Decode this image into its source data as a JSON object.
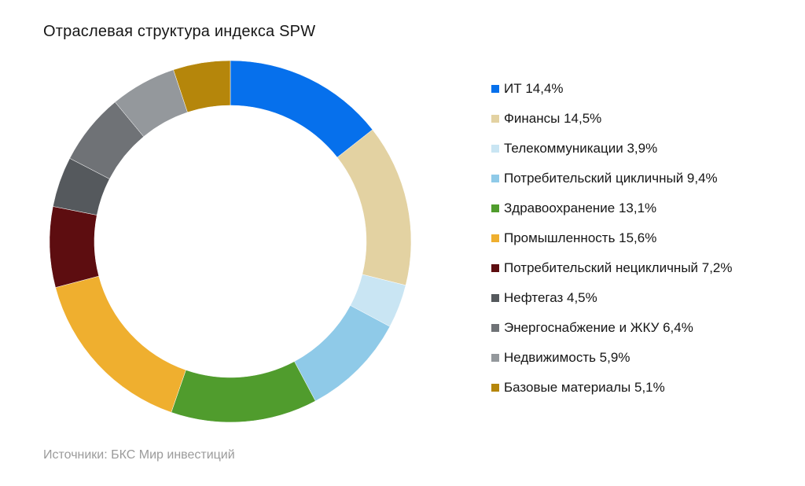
{
  "title": "Отраслевая структура индекса SPW",
  "source": "Источники: БКС Мир инвестиций",
  "chart_data": {
    "type": "pie",
    "subtype": "donut",
    "title": "Отраслевая структура индекса SPW",
    "legend_position": "right",
    "value_format": "percent-comma-decimal",
    "total": 100.0,
    "segments": [
      {
        "label": "ИТ",
        "value": 14.4,
        "display": "14,4%",
        "color": "#0670EC"
      },
      {
        "label": "Финансы",
        "value": 14.5,
        "display": "14,5%",
        "color": "#E3D2A2"
      },
      {
        "label": "Телекоммуникации",
        "value": 3.9,
        "display": "3,9%",
        "color": "#C9E5F3"
      },
      {
        "label": "Потребительский цикличный",
        "value": 9.4,
        "display": "9,4%",
        "color": "#8FCAE8"
      },
      {
        "label": "Здравоохранение",
        "value": 13.1,
        "display": "13,1%",
        "color": "#509C2D"
      },
      {
        "label": "Промышленность",
        "value": 15.6,
        "display": "15,6%",
        "color": "#EFAF2F"
      },
      {
        "label": "Потребительский нецикличный",
        "value": 7.2,
        "display": "7,2%",
        "color": "#5D0D10"
      },
      {
        "label": "Нефтегаз",
        "value": 4.5,
        "display": "4,5%",
        "color": "#55595D"
      },
      {
        "label": "Энергоснабжение и ЖКУ",
        "value": 6.4,
        "display": "6,4%",
        "color": "#6F7276"
      },
      {
        "label": "Недвижимость",
        "value": 5.9,
        "display": "5,9%",
        "color": "#94989C"
      },
      {
        "label": "Базовые материалы",
        "value": 5.1,
        "display": "5,1%",
        "color": "#B5860B"
      }
    ]
  }
}
